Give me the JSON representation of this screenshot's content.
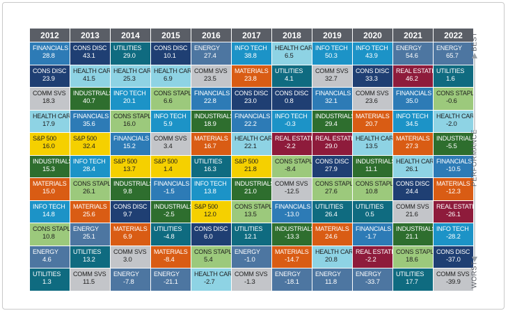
{
  "chart_data": {
    "type": "table",
    "years": [
      "2012",
      "2013",
      "2014",
      "2015",
      "2016",
      "2017",
      "2018",
      "2019",
      "2020",
      "2021",
      "2022"
    ],
    "columns": [
      [
        [
          "Financials",
          "28.8"
        ],
        [
          "Cons Disc",
          "23.9"
        ],
        [
          "Comm Svs",
          "18.3"
        ],
        [
          "Health Care",
          "17.9"
        ],
        [
          "S&P 500",
          "16.0"
        ],
        [
          "Industrials",
          "15.3"
        ],
        [
          "Materials",
          "15.0"
        ],
        [
          "Info Tech",
          "14.8"
        ],
        [
          "Cons Staples",
          "10.8"
        ],
        [
          "Energy",
          "4.6"
        ],
        [
          "Utilities",
          "1.3"
        ]
      ],
      [
        [
          "Cons Disc",
          "43.1"
        ],
        [
          "Health Care",
          "41.5"
        ],
        [
          "Industrials",
          "40.7"
        ],
        [
          "Financials",
          "35.6"
        ],
        [
          "S&P 500",
          "32.4"
        ],
        [
          "Info Tech",
          "28.4"
        ],
        [
          "Cons Staples",
          "26.1"
        ],
        [
          "Materials",
          "25.6"
        ],
        [
          "Energy",
          "25.1"
        ],
        [
          "Utilities",
          "13.2"
        ],
        [
          "Comm Svs",
          "11.5"
        ]
      ],
      [
        [
          "Utilities",
          "29.0"
        ],
        [
          "Health Care",
          "25.3"
        ],
        [
          "Info Tech",
          "20.1"
        ],
        [
          "Cons Staples",
          "16.0"
        ],
        [
          "Financials",
          "15.2"
        ],
        [
          "S&P 500",
          "13.7"
        ],
        [
          "Industrials",
          "9.8"
        ],
        [
          "Cons Disc",
          "9.7"
        ],
        [
          "Materials",
          "6.9"
        ],
        [
          "Comm Svs",
          "3.0"
        ],
        [
          "Energy",
          "-7.8"
        ]
      ],
      [
        [
          "Cons Disc",
          "10.1"
        ],
        [
          "Health Care",
          "6.9"
        ],
        [
          "Cons Staples",
          "6.6"
        ],
        [
          "Info Tech",
          "5.9"
        ],
        [
          "Comm Svs",
          "3.4"
        ],
        [
          "S&P 500",
          "1.4"
        ],
        [
          "Financials",
          "-1.5"
        ],
        [
          "Industrials",
          "-2.5"
        ],
        [
          "Utilities",
          "-4.8"
        ],
        [
          "Materials",
          "-8.4"
        ],
        [
          "Energy",
          "-21.1"
        ]
      ],
      [
        [
          "Energy",
          "27.4"
        ],
        [
          "Comm Svs",
          "23.5"
        ],
        [
          "Financials",
          "22.8"
        ],
        [
          "Industrials",
          "18.9"
        ],
        [
          "Materials",
          "16.7"
        ],
        [
          "Utilities",
          "16.3"
        ],
        [
          "Info Tech",
          "13.8"
        ],
        [
          "S&P 500",
          "12.0"
        ],
        [
          "Cons Disc",
          "6.0"
        ],
        [
          "Cons Staples",
          "5.4"
        ],
        [
          "Health Care",
          "-2.7"
        ]
      ],
      [
        [
          "Info Tech",
          "38.8"
        ],
        [
          "Materials",
          "23.8"
        ],
        [
          "Cons Disc",
          "23.0"
        ],
        [
          "Financials",
          "22.2"
        ],
        [
          "Health Care",
          "22.1"
        ],
        [
          "S&P 500",
          "21.8"
        ],
        [
          "Industrials",
          "21.0"
        ],
        [
          "Cons Staples",
          "13.5"
        ],
        [
          "Utilities",
          "12.1"
        ],
        [
          "Energy",
          "-1.0"
        ],
        [
          "Comm Svs",
          "-1.3"
        ]
      ],
      [
        [
          "Health Care",
          "6.5"
        ],
        [
          "Utilities",
          "4.1"
        ],
        [
          "Cons Disc",
          "0.8"
        ],
        [
          "Info Tech",
          "-0.3"
        ],
        [
          "Real Estate",
          "-2.2"
        ],
        [
          "Cons Staples",
          "-8.4"
        ],
        [
          "Comm Svs",
          "-12.5"
        ],
        [
          "Financials",
          "-13.0"
        ],
        [
          "Industrials",
          "-13.3"
        ],
        [
          "Materials",
          "-14.7"
        ],
        [
          "Energy",
          "-18.1"
        ]
      ],
      [
        [
          "Info Tech",
          "50.3"
        ],
        [
          "Comm Svs",
          "32.7"
        ],
        [
          "Financials",
          "32.1"
        ],
        [
          "Industrials",
          "29.4"
        ],
        [
          "Real Estate",
          "29.0"
        ],
        [
          "Cons Disc",
          "27.9"
        ],
        [
          "Cons Staples",
          "27.6"
        ],
        [
          "Utilities",
          "26.4"
        ],
        [
          "Materials",
          "24.6"
        ],
        [
          "Health Care",
          "20.8"
        ],
        [
          "Energy",
          "11.8"
        ]
      ],
      [
        [
          "Info Tech",
          "43.9"
        ],
        [
          "Cons Disc",
          "33.3"
        ],
        [
          "Comm Svs",
          "23.6"
        ],
        [
          "Materials",
          "20.7"
        ],
        [
          "Health Care",
          "13.5"
        ],
        [
          "Industrials",
          "11.1"
        ],
        [
          "Cons Staples",
          "10.8"
        ],
        [
          "Utilities",
          "0.5"
        ],
        [
          "Financials",
          "-1.7"
        ],
        [
          "Real Estate",
          "-2.2"
        ],
        [
          "Energy",
          "-33.7"
        ]
      ],
      [
        [
          "Energy",
          "54.6"
        ],
        [
          "Real Estate",
          "46.2"
        ],
        [
          "Financials",
          "35.0"
        ],
        [
          "Info Tech",
          "34.5"
        ],
        [
          "Materials",
          "27.3"
        ],
        [
          "Health Care",
          "26.1"
        ],
        [
          "Cons Disc",
          "24.4"
        ],
        [
          "Comm Svs",
          "21.6"
        ],
        [
          "Industrials",
          "21.1"
        ],
        [
          "Cons Staples",
          "18.6"
        ],
        [
          "Utilities",
          "17.7"
        ]
      ],
      [
        [
          "Energy",
          "65.7"
        ],
        [
          "Utilities",
          "1.6"
        ],
        [
          "Cons Staples",
          "-0.6"
        ],
        [
          "Health Care",
          "-2.0"
        ],
        [
          "Industrials",
          "-5.5"
        ],
        [
          "Financials",
          "-10.5"
        ],
        [
          "Materials",
          "-12.3"
        ],
        [
          "Real Estate",
          "-26.1"
        ],
        [
          "Info Tech",
          "-28.2"
        ],
        [
          "Cons Disc",
          "-37.0"
        ],
        [
          "Comm Svs",
          "-39.9"
        ]
      ]
    ],
    "side_axis": {
      "top": "BEST",
      "middle": "PERFORMANCE",
      "bottom": "WORST"
    }
  },
  "sector_colors": {
    "Financials": "#2d7bb6",
    "Cons Disc": "#1f3f73",
    "Comm Svs": "#c3c5c9",
    "Health Care": "#8ed3e4",
    "S&P 500": "#f5d000",
    "Industrials": "#2e6e2e",
    "Materials": "#d95c14",
    "Info Tech": "#1c93c7",
    "Cons Staples": "#9cc97c",
    "Energy": "#4d76a1",
    "Utilities": "#0f6b80",
    "Real Estate": "#8e1b3b"
  },
  "dark_text_sectors": [
    "Comm Svs",
    "Health Care",
    "S&P 500",
    "Cons Staples"
  ]
}
